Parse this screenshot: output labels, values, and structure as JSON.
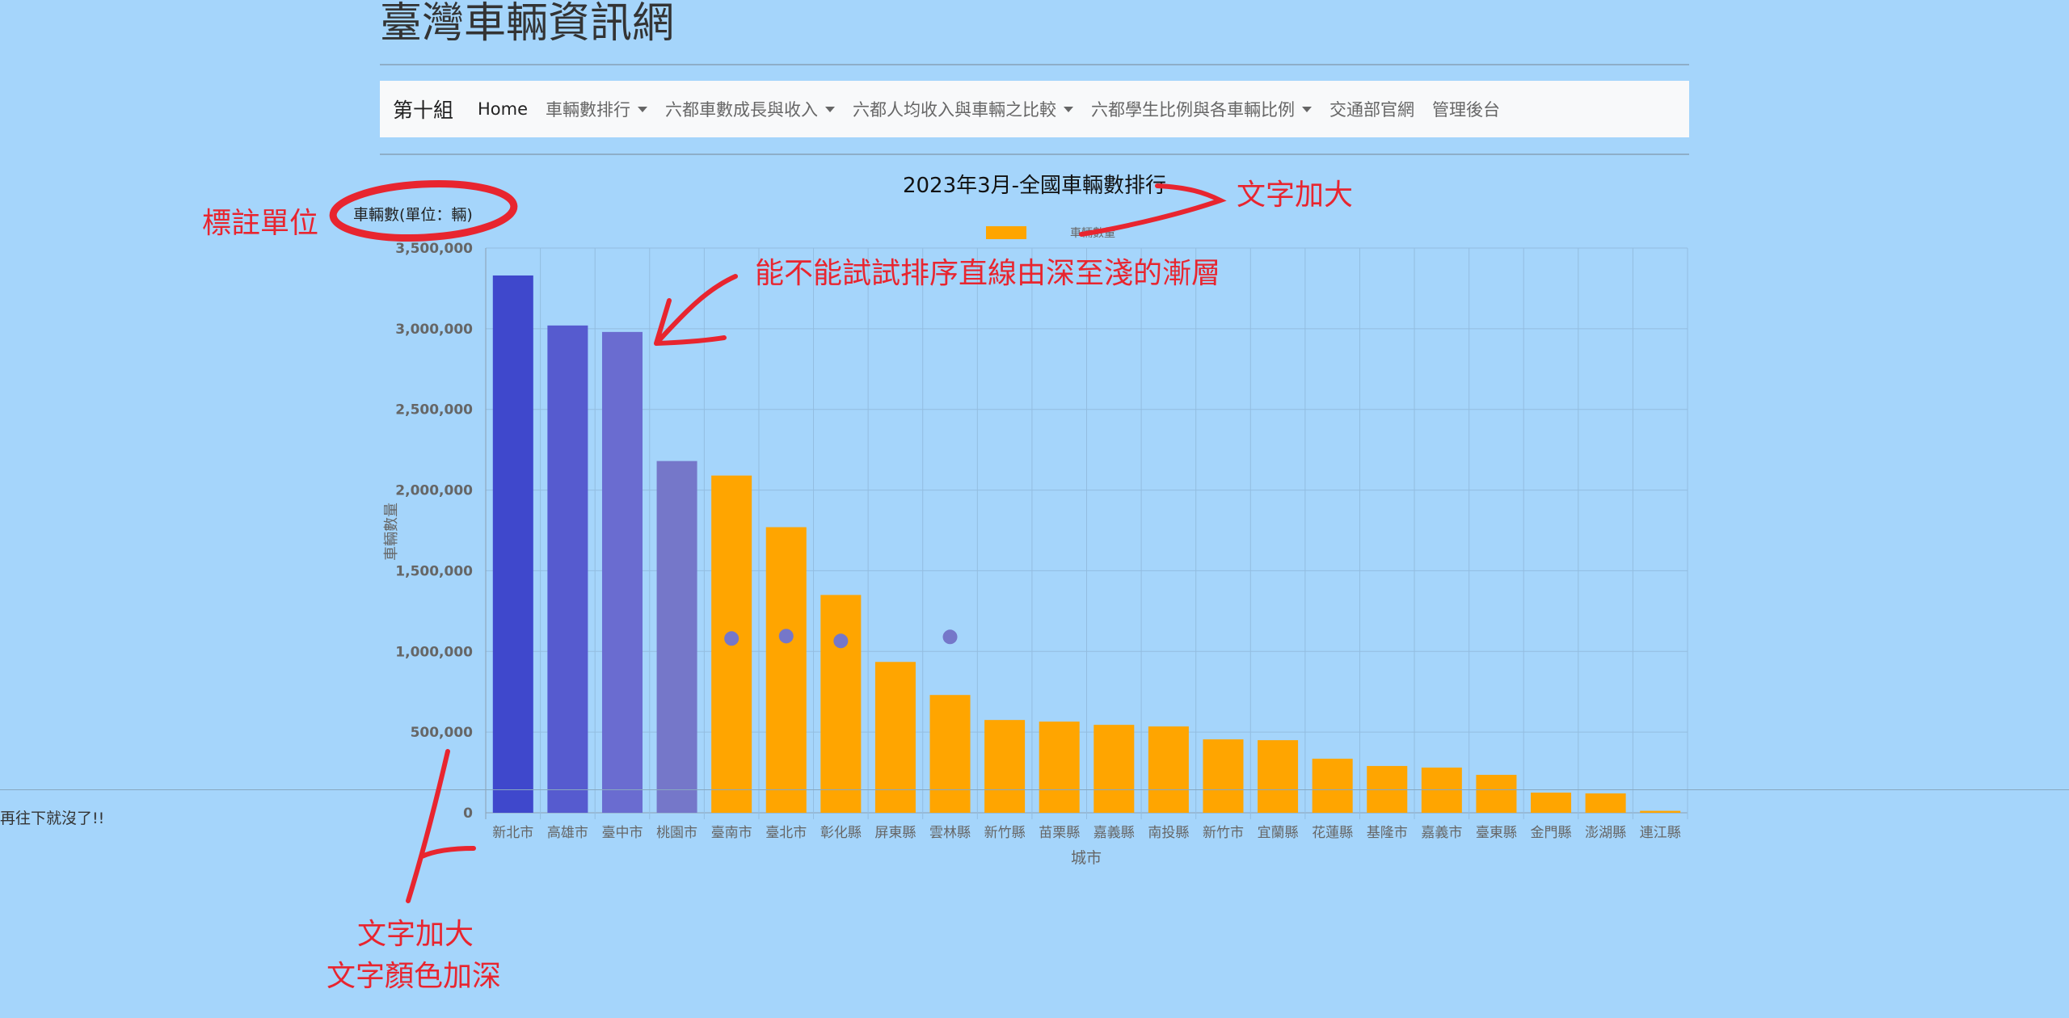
{
  "site": {
    "title": "臺灣車輛資訊網"
  },
  "navbar": {
    "brand": "第十組",
    "items": [
      {
        "label": "Home",
        "dropdown": false,
        "active": true
      },
      {
        "label": "車輛數排行",
        "dropdown": true,
        "active": false
      },
      {
        "label": "六都車數成長與收入",
        "dropdown": true,
        "active": false
      },
      {
        "label": "六都人均收入與車輛之比較",
        "dropdown": true,
        "active": false
      },
      {
        "label": "六都學生比例與各車輛比例",
        "dropdown": true,
        "active": false
      },
      {
        "label": "交通部官網",
        "dropdown": false,
        "active": false
      },
      {
        "label": "管理後台",
        "dropdown": false,
        "active": false
      }
    ]
  },
  "chart_data": {
    "type": "bar",
    "title": "2023年3月-全國車輛數排行",
    "unit_label": "車輛數(單位：輛)",
    "xlabel": "城市",
    "ylabel": "車輛數量",
    "legend": [
      "車輛數量"
    ],
    "legend_position": "top",
    "ylim": [
      0,
      3500000
    ],
    "yticks": [
      0,
      500000,
      1000000,
      1500000,
      2000000,
      2500000,
      3000000,
      3500000
    ],
    "ytick_labels": [
      "0",
      "500,000",
      "1,000,000",
      "1,500,000",
      "2,000,000",
      "2,500,000",
      "3,000,000",
      "3,500,000"
    ],
    "grid": true,
    "categories": [
      "新北市",
      "高雄市",
      "臺中市",
      "桃園市",
      "臺南市",
      "臺北市",
      "彰化縣",
      "屏東縣",
      "雲林縣",
      "新竹縣",
      "苗栗縣",
      "嘉義縣",
      "南投縣",
      "新竹市",
      "宜蘭縣",
      "花蓮縣",
      "基隆市",
      "嘉義市",
      "臺東縣",
      "金門縣",
      "澎湖縣",
      "連江縣"
    ],
    "values": [
      3330000,
      3020000,
      2980000,
      2180000,
      2090000,
      1770000,
      1350000,
      935000,
      730000,
      575000,
      565000,
      545000,
      535000,
      455000,
      450000,
      335000,
      290000,
      280000,
      235000,
      125000,
      120000,
      12000
    ],
    "bar_colors": [
      "#3f48cc",
      "#565bcf",
      "#6a6cd0",
      "#7577c9",
      "#ffa500",
      "#ffa500",
      "#ffa500",
      "#ffa500",
      "#ffa500",
      "#ffa500",
      "#ffa500",
      "#ffa500",
      "#ffa500",
      "#ffa500",
      "#ffa500",
      "#ffa500",
      "#ffa500",
      "#ffa500",
      "#ffa500",
      "#ffa500",
      "#ffa500",
      "#ffa500"
    ],
    "dots": [
      {
        "category": "臺南市",
        "value": 1080000
      },
      {
        "category": "臺北市",
        "value": 1095000
      },
      {
        "category": "彰化縣",
        "value": 1065000
      },
      {
        "category": "雲林縣",
        "value": 1090000
      }
    ],
    "dot_color": "#7577c9"
  },
  "footer": {
    "text": "再往下就沒了!!"
  },
  "annotations": {
    "mark_unit": "標註單位",
    "gradient": "能不能試試排序直線由深至淺的漸層",
    "title_bigger": "文字加大",
    "axis_bigger": "文字加大",
    "axis_darker": "文字顏色加深"
  }
}
